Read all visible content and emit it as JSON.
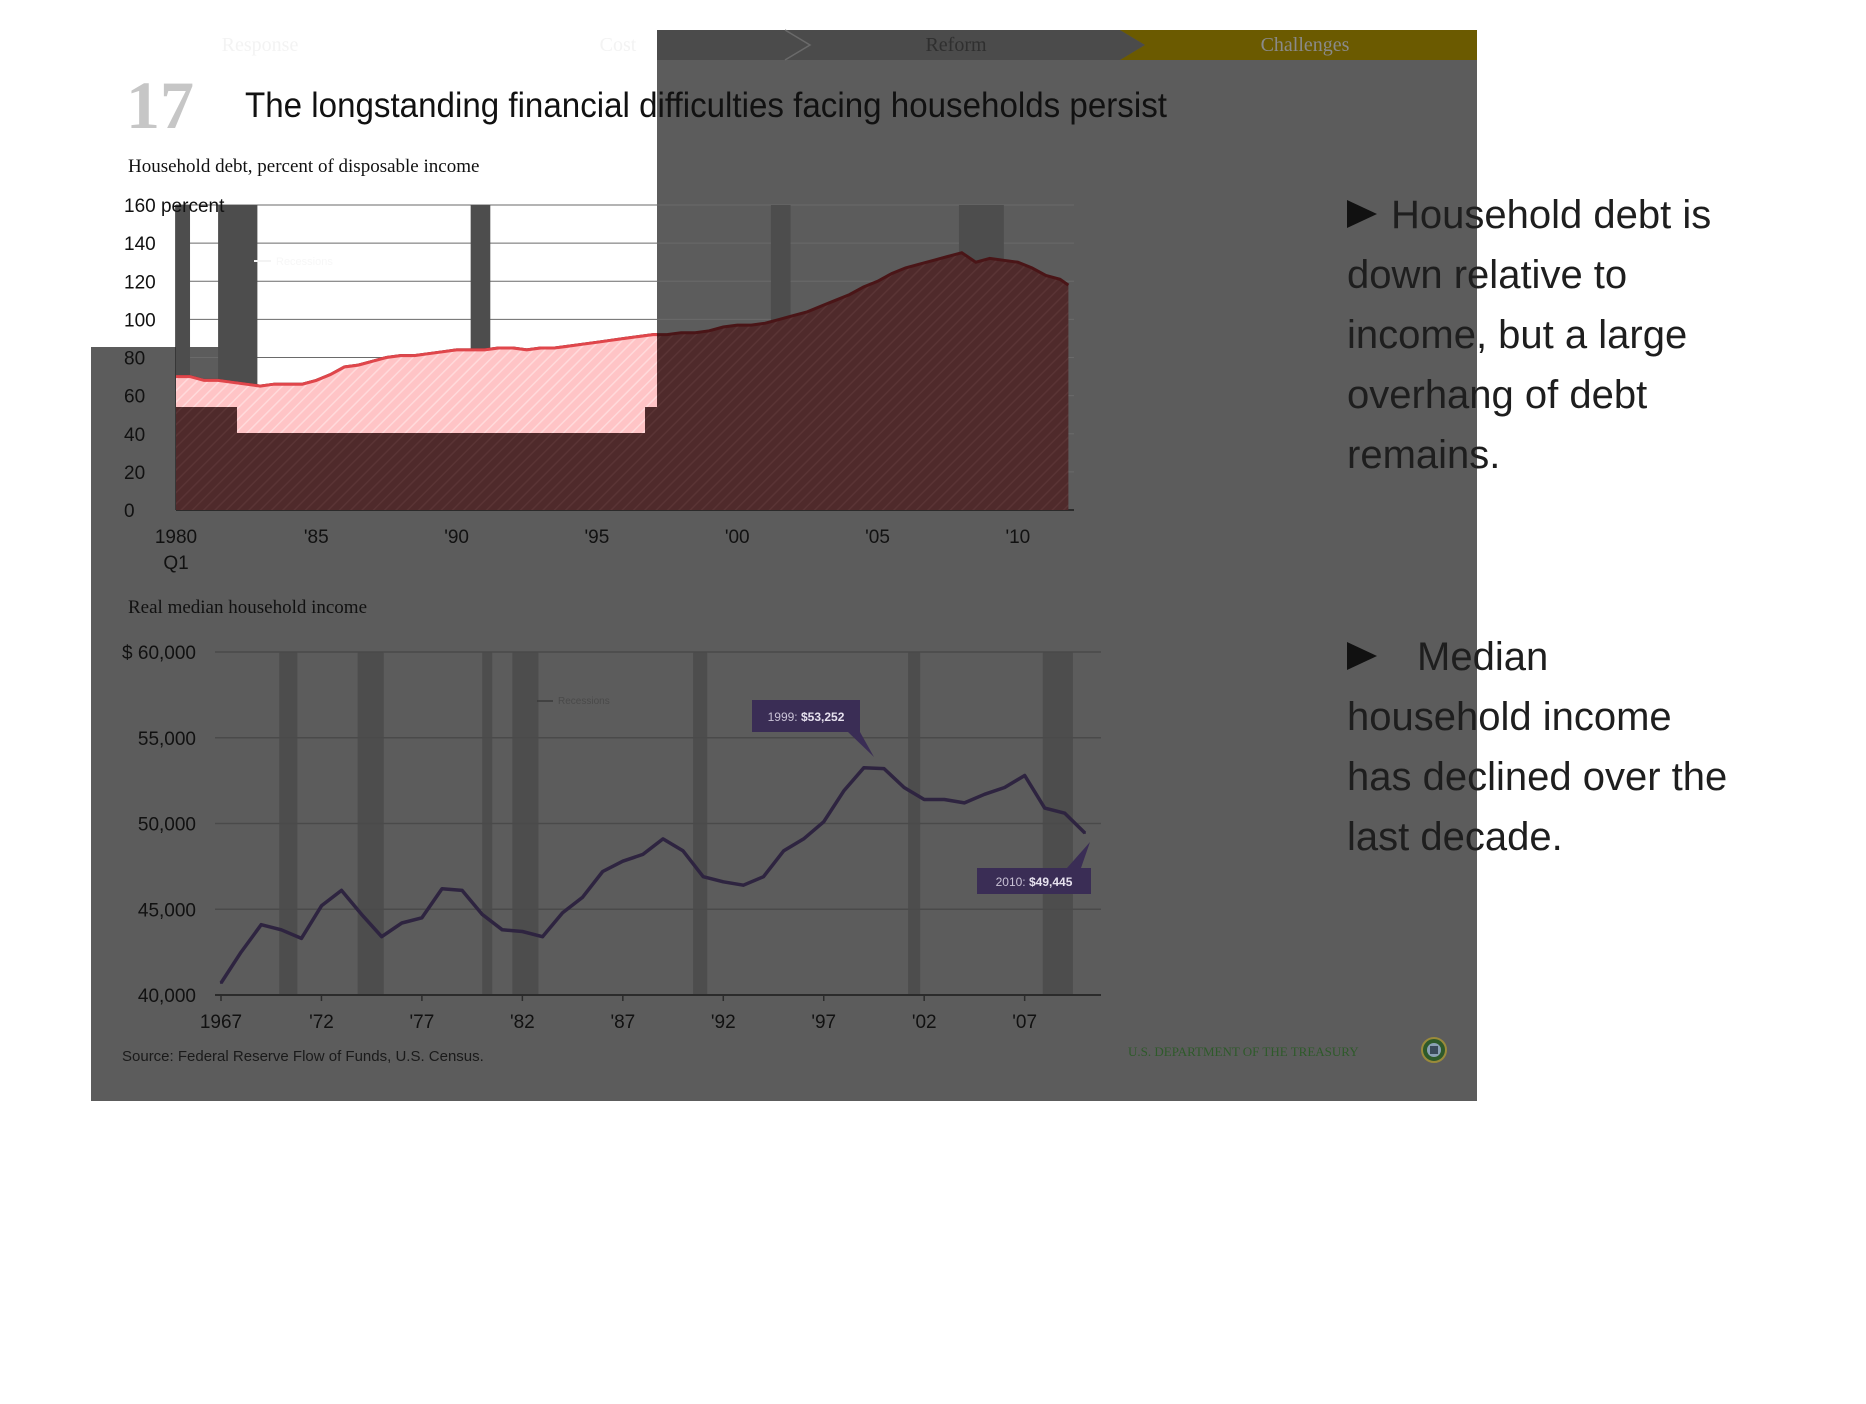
{
  "slide": {
    "number": "17",
    "title": "The longstanding financial difficulties facing households persist",
    "nav": [
      {
        "label": "Response",
        "active": false
      },
      {
        "label": "Cost",
        "active": false
      },
      {
        "label": "Reform",
        "active": false
      },
      {
        "label": "Challenges",
        "active": true
      }
    ],
    "bullets": [
      "Household debt is down relative to income, but a large overhang of debt remains.",
      "Median household income has declined over the last decade."
    ],
    "source": "Source: Federal Reserve Flow of Funds, U.S. Census.",
    "footer_org": "U.S. DEPARTMENT OF THE TREASURY",
    "colors": {
      "overlay": "#5c5c5c",
      "debt_fill": "#4f2a2b",
      "debt_line": "#4a1517",
      "debt_highlight_fill": "#ffc4c6",
      "debt_highlight_line": "#e0464b",
      "income_line": "#2e2440",
      "recession_band": "#4d4d4d",
      "callout": "#3a2d55",
      "nav_active": "#6b5a00",
      "treasury_green": "#2e5a2a"
    }
  },
  "chart_data": [
    {
      "type": "area",
      "title": "Household debt, percent of disposable income",
      "ylabel": "percent",
      "ylim": [
        0,
        160
      ],
      "yticks": [
        "160 percent",
        "140",
        "120",
        "100",
        "80",
        "60",
        "40",
        "20",
        "0"
      ],
      "xticks": [
        "1980\nQ1",
        "'85",
        "'90",
        "'95",
        "'00",
        "'05",
        "'10"
      ],
      "xlim": [
        1980.0,
        2012.0
      ],
      "legend": "Recessions",
      "recessions": [
        [
          1980.0,
          1980.5
        ],
        [
          1981.5,
          1982.9
        ],
        [
          1990.5,
          1991.2
        ],
        [
          2001.2,
          2001.9
        ],
        [
          2007.9,
          2009.5
        ]
      ],
      "x": [
        1980.0,
        1980.5,
        1981.0,
        1981.5,
        1982.0,
        1982.5,
        1983.0,
        1983.5,
        1984.0,
        1984.5,
        1985.0,
        1985.5,
        1986.0,
        1986.5,
        1987.0,
        1987.5,
        1988.0,
        1988.5,
        1989.0,
        1989.5,
        1990.0,
        1990.5,
        1991.0,
        1991.5,
        1992.0,
        1992.5,
        1993.0,
        1993.5,
        1994.0,
        1994.5,
        1995.0,
        1995.5,
        1996.0,
        1996.5,
        1997.0,
        1997.5,
        1998.0,
        1998.5,
        1999.0,
        1999.5,
        2000.0,
        2000.5,
        2001.0,
        2001.5,
        2002.0,
        2002.5,
        2003.0,
        2003.5,
        2004.0,
        2004.5,
        2005.0,
        2005.5,
        2006.0,
        2006.5,
        2007.0,
        2007.5,
        2008.0,
        2008.5,
        2009.0,
        2009.5,
        2010.0,
        2010.5,
        2011.0,
        2011.5,
        2011.8
      ],
      "values": [
        70,
        70,
        68,
        68,
        67,
        66,
        65,
        66,
        66,
        66,
        68,
        71,
        75,
        76,
        78,
        80,
        81,
        81,
        82,
        83,
        84,
        84,
        84,
        85,
        85,
        84,
        85,
        85,
        86,
        87,
        88,
        89,
        90,
        91,
        92,
        92,
        93,
        93,
        94,
        96,
        97,
        97,
        98,
        100,
        102,
        104,
        107,
        110,
        113,
        117,
        120,
        124,
        127,
        129,
        131,
        133,
        135,
        130,
        132,
        131,
        130,
        127,
        123,
        121,
        118
      ]
    },
    {
      "type": "line",
      "title": "Real median household income",
      "ylim": [
        40000,
        60000
      ],
      "yticks": [
        "$ 60,000",
        "55,000",
        "50,000",
        "45,000",
        "40,000"
      ],
      "xticks": [
        "1967",
        "'72",
        "'77",
        "'82",
        "'87",
        "'92",
        "'97",
        "'02",
        "'07"
      ],
      "legend": "Recessions",
      "recessions": [
        [
          1969.9,
          1970.8
        ],
        [
          1973.8,
          1975.1
        ],
        [
          1980.0,
          1980.5
        ],
        [
          1981.5,
          1982.8
        ],
        [
          1990.5,
          1991.2
        ],
        [
          2001.2,
          2001.8
        ],
        [
          2007.9,
          2009.4
        ]
      ],
      "x": [
        1967,
        1968,
        1969,
        1970,
        1971,
        1972,
        1973,
        1974,
        1975,
        1976,
        1977,
        1978,
        1979,
        1980,
        1981,
        1982,
        1983,
        1984,
        1985,
        1986,
        1987,
        1988,
        1989,
        1990,
        1991,
        1992,
        1993,
        1994,
        1995,
        1996,
        1997,
        1998,
        1999,
        2000,
        2001,
        2002,
        2003,
        2004,
        2005,
        2006,
        2007,
        2008,
        2009,
        2010
      ],
      "values": [
        40700,
        42500,
        44100,
        43800,
        43300,
        45200,
        46100,
        44700,
        43400,
        44200,
        44500,
        46200,
        46100,
        44700,
        43800,
        43700,
        43400,
        44800,
        45700,
        47200,
        47800,
        48200,
        49100,
        48400,
        46900,
        46600,
        46400,
        46900,
        48400,
        49100,
        50100,
        51900,
        53252,
        53200,
        52100,
        51400,
        51400,
        51200,
        51700,
        52100,
        52800,
        50900,
        50600,
        49445
      ],
      "annotations": [
        {
          "label": "1999:",
          "value": "$53,252"
        },
        {
          "label": "2010:",
          "value": "$49,445"
        }
      ]
    }
  ]
}
